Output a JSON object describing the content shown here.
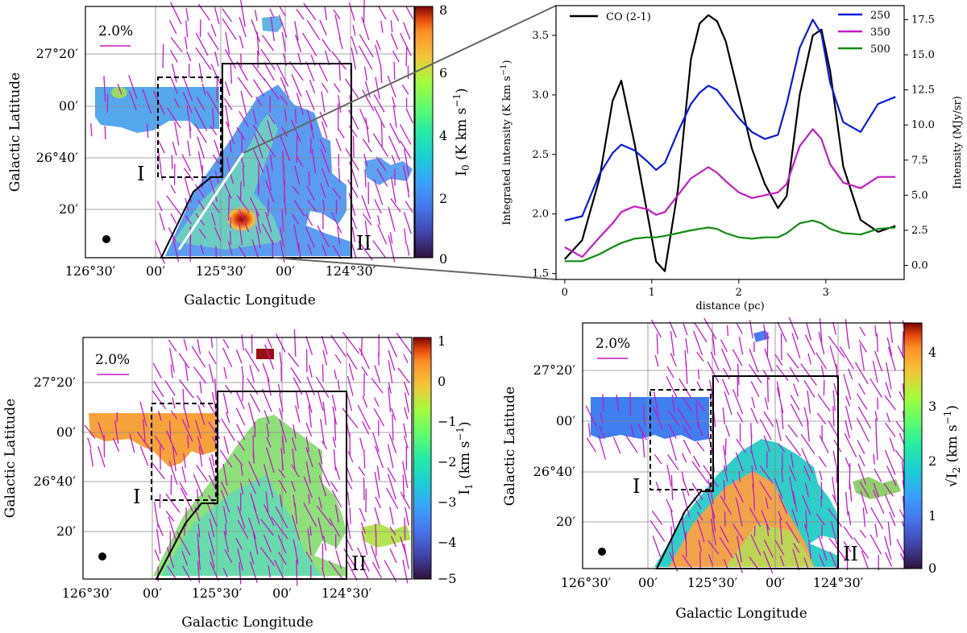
{
  "chart_data": [
    {
      "type": "map",
      "panel": "top-left",
      "title": "",
      "xlabel": "Galactic Longitude",
      "ylabel": "Galactic Latitude",
      "x_ticks": [
        "126°30′",
        "00′",
        "125°30′",
        "00′",
        "124°30′"
      ],
      "y_ticks": [
        "27°20′",
        "00′",
        "26°40′",
        "20′"
      ],
      "colorbar": {
        "label": "I₀ (K km s⁻¹)",
        "min": 0,
        "max": 8,
        "ticks": [
          "0",
          "2",
          "4",
          "6",
          "8"
        ],
        "colormap": "turbo"
      },
      "scale_bar_label": "2.0%",
      "region_labels": [
        "I",
        "II"
      ],
      "beam": true,
      "cut_line": true
    },
    {
      "type": "line",
      "panel": "top-right",
      "xlabel": "distance (pc)",
      "ylabel_left": "Integrated intensity (K km s⁻¹)",
      "ylabel_right": "Intensity (MJy/sr)",
      "x_range": [
        -0.1,
        3.9
      ],
      "x_ticks": [
        0,
        1,
        2,
        3
      ],
      "y_left_range": [
        1.45,
        3.75
      ],
      "y_left_ticks": [
        "1.5",
        "2.0",
        "2.5",
        "3.0",
        "3.5"
      ],
      "y_right_range": [
        -1.0,
        18.5
      ],
      "y_right_ticks": [
        "0.0",
        "2.5",
        "5.0",
        "7.5",
        "10.0",
        "12.5",
        "15.0",
        "17.5"
      ],
      "legend_left": {
        "position": "top-left",
        "entries": [
          "CO (2-1)"
        ]
      },
      "legend_right": {
        "position": "top-right",
        "entries": [
          "250",
          "350",
          "500"
        ]
      },
      "x": [
        0.0,
        0.2,
        0.4,
        0.55,
        0.65,
        0.8,
        0.95,
        1.05,
        1.15,
        1.3,
        1.45,
        1.55,
        1.65,
        1.75,
        1.85,
        2.0,
        2.15,
        2.3,
        2.45,
        2.55,
        2.7,
        2.85,
        2.95,
        3.05,
        3.2,
        3.4,
        3.6,
        3.8
      ],
      "series": [
        {
          "name": "CO (2-1)",
          "axis": "left",
          "color": "#000000",
          "values": [
            1.62,
            1.78,
            2.3,
            2.95,
            3.12,
            2.6,
            2.0,
            1.6,
            1.52,
            2.2,
            3.3,
            3.6,
            3.67,
            3.62,
            3.45,
            3.0,
            2.55,
            2.25,
            2.05,
            2.15,
            3.0,
            3.5,
            3.55,
            3.2,
            2.4,
            1.95,
            1.85,
            1.9
          ]
        },
        {
          "name": "250",
          "axis": "right",
          "color": "#0a18e6",
          "values": [
            3.2,
            3.5,
            6.5,
            8.0,
            8.6,
            8.2,
            7.4,
            6.8,
            7.3,
            9.5,
            11.5,
            12.3,
            12.8,
            12.5,
            11.7,
            10.5,
            9.5,
            9.0,
            9.3,
            11.5,
            15.5,
            17.5,
            16.5,
            13.0,
            10.2,
            9.5,
            11.5,
            12.0
          ]
        },
        {
          "name": "350",
          "axis": "right",
          "color": "#c41ac4",
          "values": [
            1.3,
            0.6,
            2.0,
            3.0,
            3.8,
            4.2,
            4.0,
            3.6,
            3.8,
            5.0,
            6.2,
            6.6,
            7.0,
            6.6,
            6.0,
            5.2,
            4.8,
            5.0,
            5.2,
            5.8,
            8.5,
            9.7,
            9.0,
            7.2,
            5.9,
            5.5,
            6.3,
            6.3
          ]
        },
        {
          "name": "500",
          "axis": "right",
          "color": "#138a13",
          "values": [
            0.3,
            0.3,
            0.8,
            1.3,
            1.6,
            1.9,
            2.0,
            2.0,
            2.1,
            2.3,
            2.5,
            2.6,
            2.7,
            2.6,
            2.3,
            2.0,
            1.9,
            2.0,
            2.0,
            2.3,
            3.0,
            3.2,
            3.0,
            2.6,
            2.3,
            2.2,
            2.6,
            2.7
          ]
        }
      ]
    },
    {
      "type": "map",
      "panel": "bottom-left",
      "xlabel": "Galactic Longitude",
      "ylabel": "Galactic Latitude",
      "x_ticks": [
        "126°30′",
        "00′",
        "125°30′",
        "00′",
        "124°30′"
      ],
      "y_ticks": [
        "27°20′",
        "00′",
        "26°40′",
        "20′"
      ],
      "colorbar": {
        "label": "I₁ (km s⁻¹)",
        "min": -5,
        "max": 1,
        "ticks": [
          "−5",
          "−4",
          "−3",
          "−2",
          "−1",
          "0",
          "1"
        ],
        "colormap": "turbo"
      },
      "scale_bar_label": "2.0%",
      "region_labels": [
        "I",
        "II"
      ],
      "beam": true
    },
    {
      "type": "map",
      "panel": "bottom-right",
      "xlabel": "Galactic Longitude",
      "ylabel": "Galactic Latitude",
      "x_ticks": [
        "126°30′",
        "00′",
        "125°30′",
        "00′",
        "124°30′"
      ],
      "y_ticks": [
        "27°20′",
        "00′",
        "26°40′",
        "20′"
      ],
      "colorbar": {
        "label": "√I₂ (km s⁻¹)",
        "min": 0,
        "max": 4.5,
        "ticks": [
          "0",
          "1",
          "2",
          "3",
          "4"
        ],
        "colormap": "turbo"
      },
      "scale_bar_label": "2.0%",
      "region_labels": [
        "I",
        "II"
      ],
      "beam": true
    }
  ]
}
